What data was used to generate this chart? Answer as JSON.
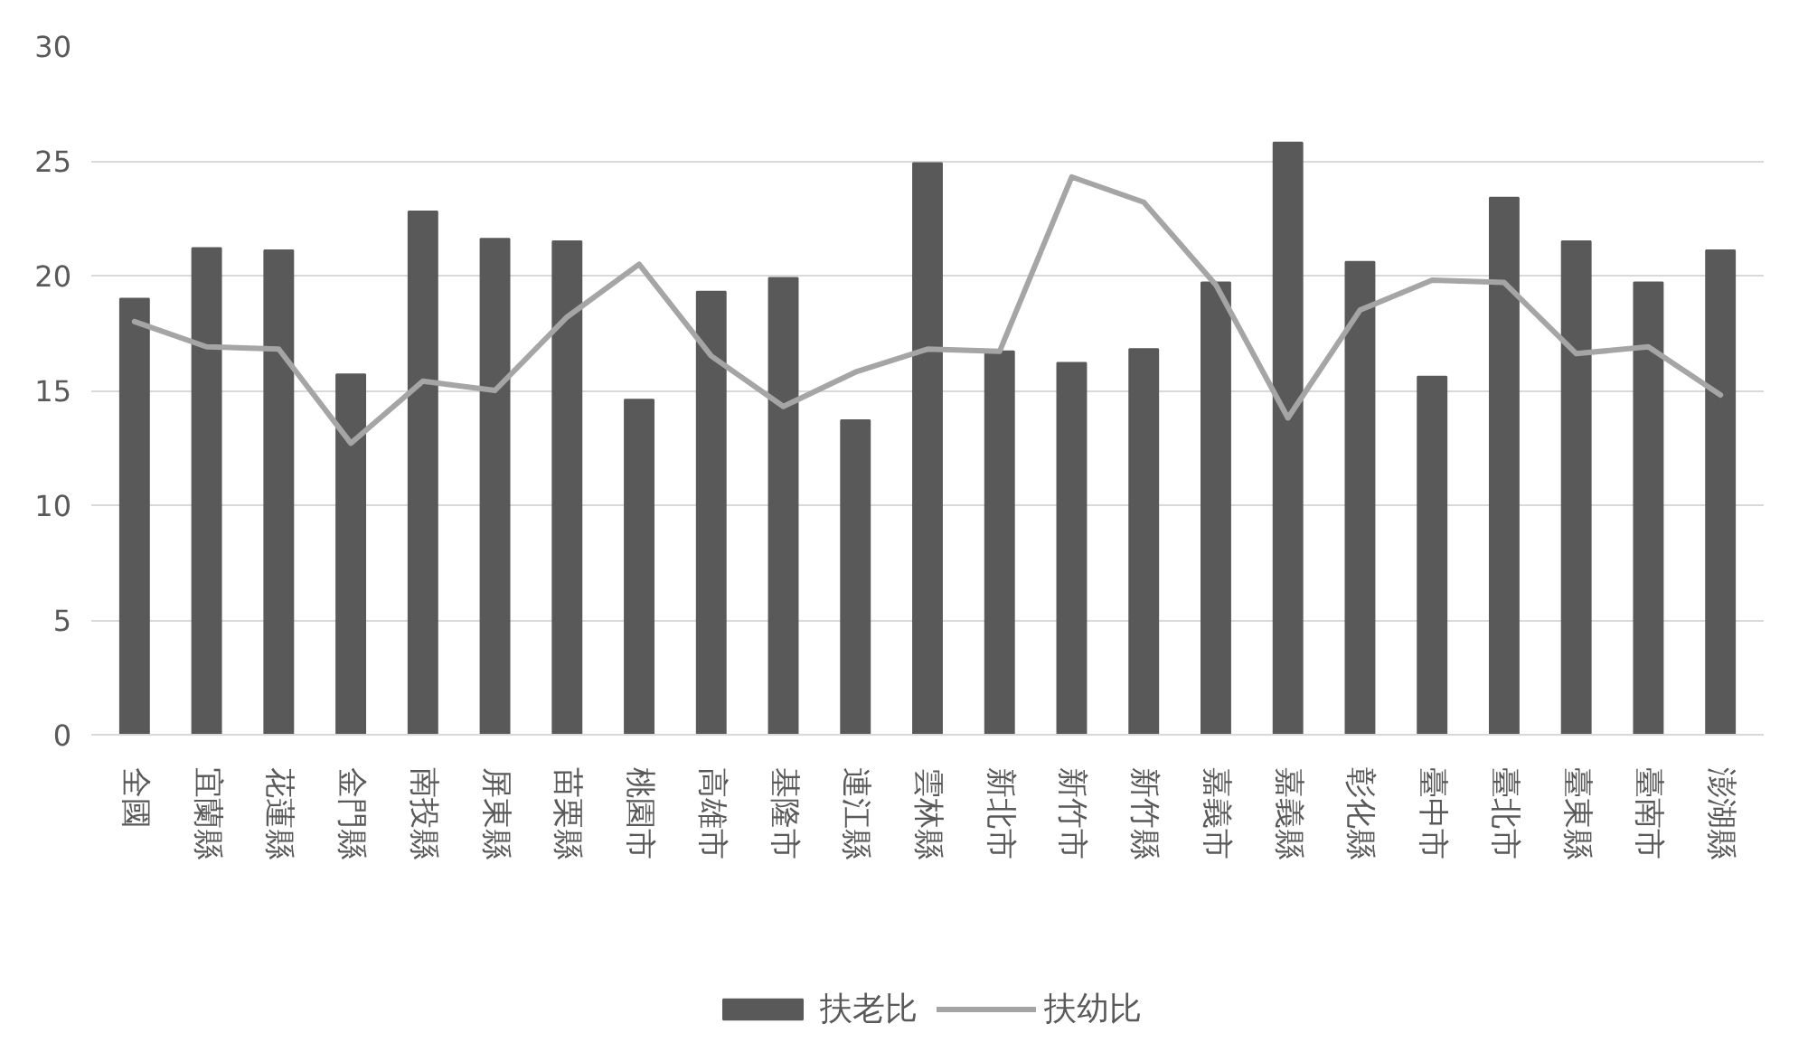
{
  "chart_data": {
    "type": "bar",
    "categories": [
      "全國",
      "宜蘭縣",
      "花蓮縣",
      "金門縣",
      "南投縣",
      "屏東縣",
      "苗栗縣",
      "桃園市",
      "高雄市",
      "基隆市",
      "連江縣",
      "雲林縣",
      "新北市",
      "新竹市",
      "新竹縣",
      "嘉義市",
      "嘉義縣",
      "彰化縣",
      "臺中市",
      "臺北市",
      "臺東縣",
      "臺南市",
      "澎湖縣"
    ],
    "series": [
      {
        "name": "扶老比",
        "color": "#595959",
        "values": [
          19.0,
          21.2,
          21.1,
          15.7,
          22.8,
          21.6,
          21.5,
          14.6,
          19.3,
          19.9,
          13.7,
          24.9,
          16.7,
          16.2,
          16.8,
          19.7,
          25.8,
          20.6,
          15.6,
          23.4,
          21.5,
          19.7,
          21.1
        ]
      },
      {
        "name": "扶幼比",
        "type": "line",
        "color": "#a5a5a5",
        "values": [
          18.0,
          16.9,
          16.8,
          12.7,
          15.4,
          15.0,
          18.2,
          20.5,
          16.5,
          14.3,
          15.8,
          16.8,
          16.7,
          24.3,
          23.2,
          19.6,
          13.8,
          18.5,
          19.8,
          19.7,
          16.6,
          16.9,
          14.8
        ]
      }
    ],
    "ylim": [
      0,
      30
    ],
    "yticks": [
      0,
      5,
      10,
      15,
      20,
      25,
      30
    ],
    "grid": "y",
    "legend": "bottom",
    "line_style": "solid"
  }
}
